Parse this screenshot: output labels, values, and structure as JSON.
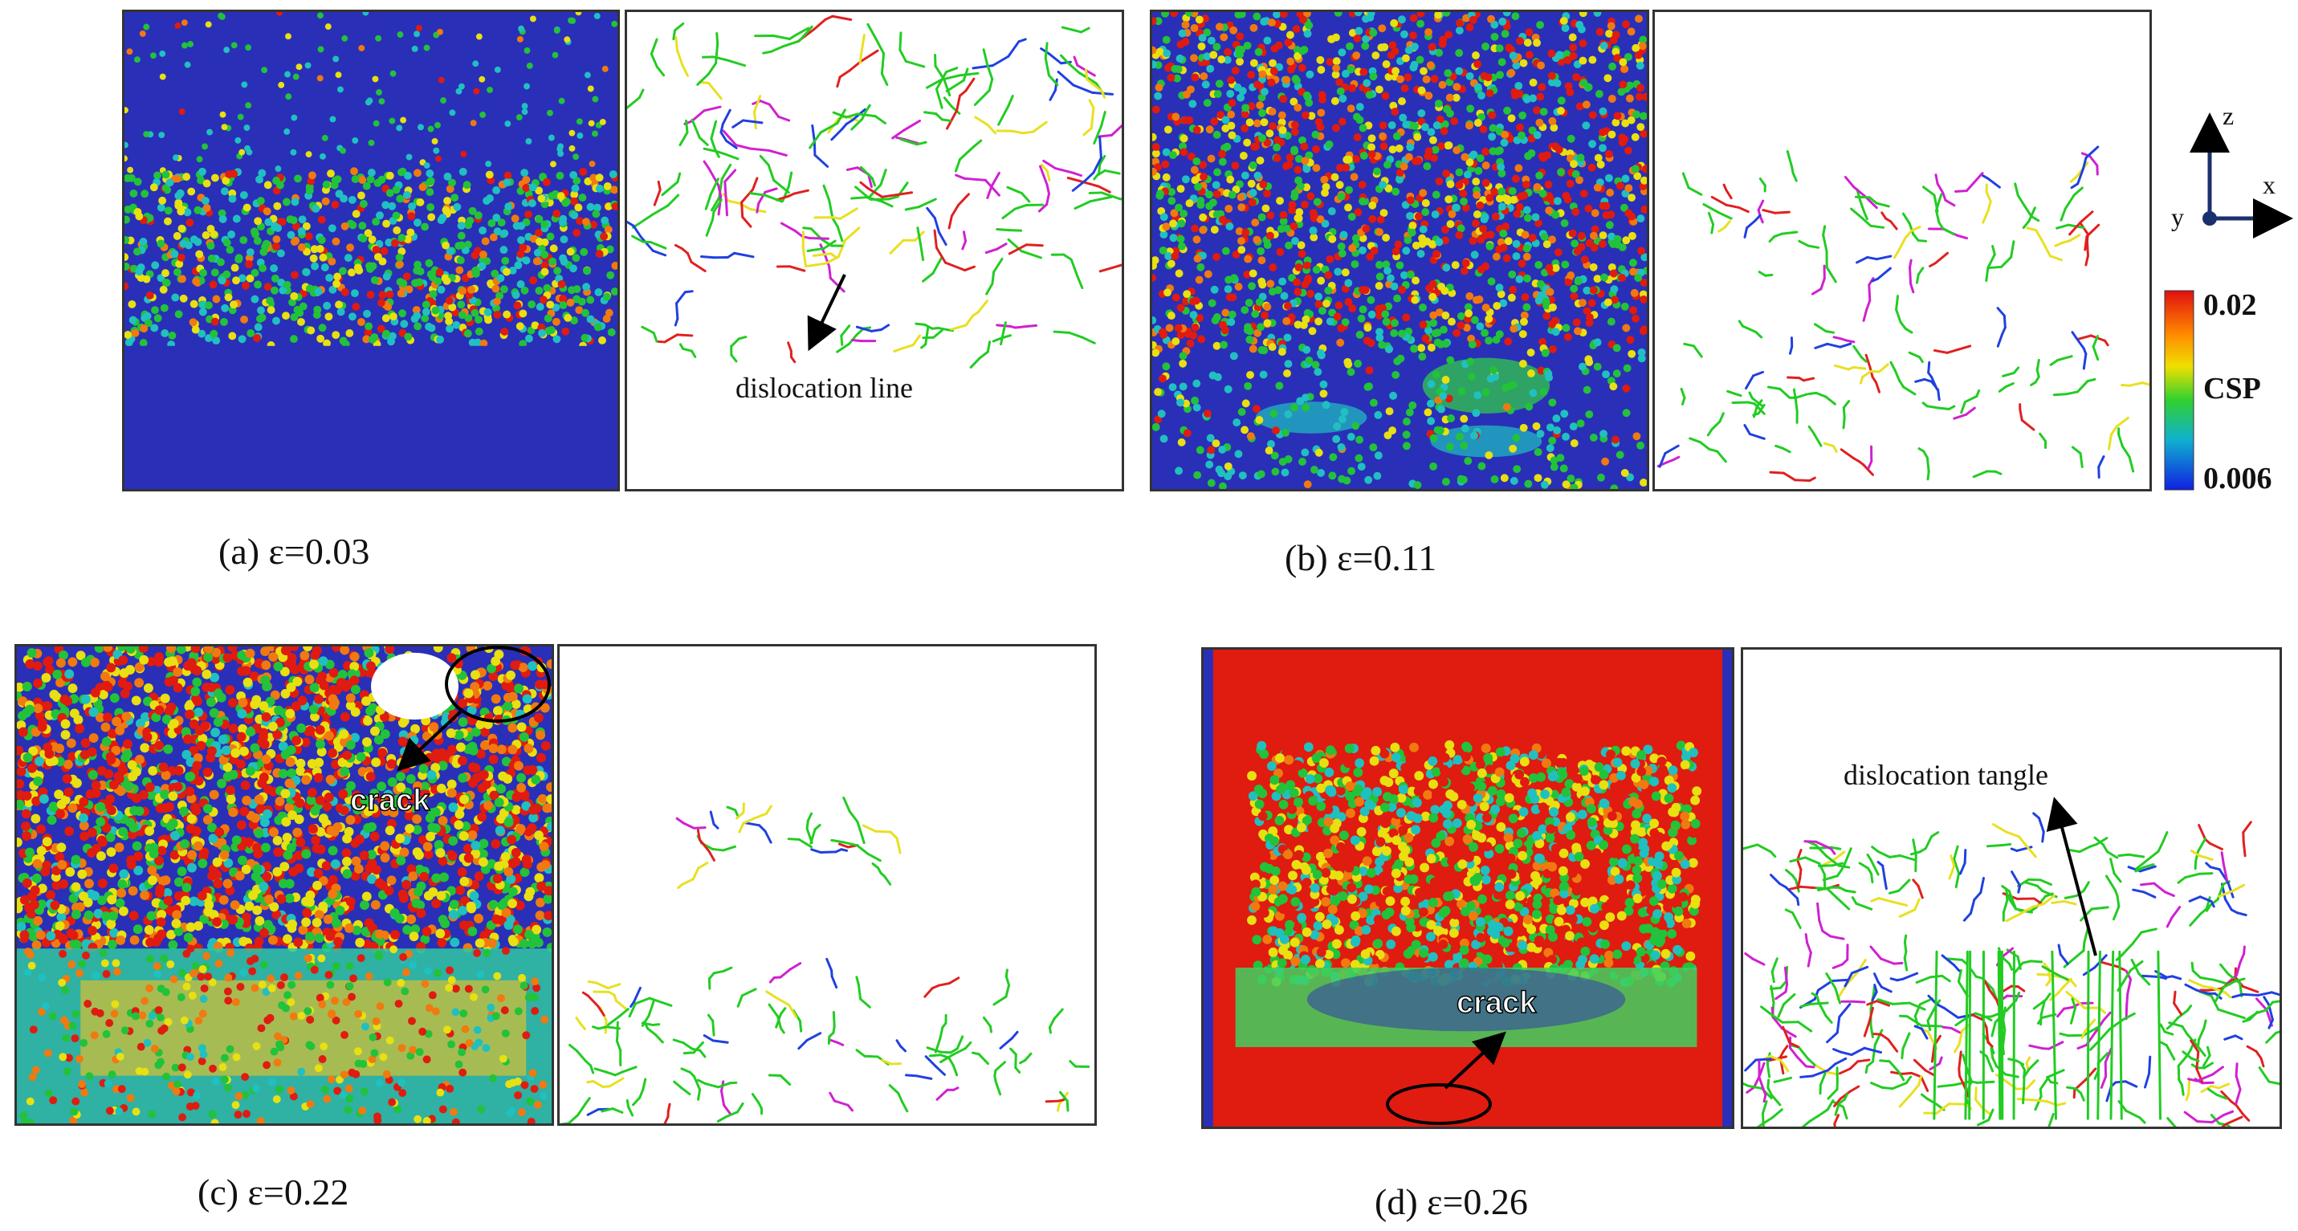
{
  "panels": [
    {
      "caption": "(a) ε=0.03",
      "annotation": "dislocation line"
    },
    {
      "caption": "(b) ε=0.11"
    },
    {
      "caption": "(c) ε=0.22",
      "annotation": "crack"
    },
    {
      "caption": "(d) ε=0.26",
      "annotation_crack": "crack",
      "annotation_tangle": "dislocation tangle"
    }
  ],
  "colorbar": {
    "max": "0.02",
    "label": "CSP",
    "min": "0.006"
  },
  "axes": {
    "z": "z",
    "x": "x",
    "y": "y"
  },
  "colors": {
    "csp_low": "#2a2fb8",
    "csp_mid": "#22c23a",
    "csp_high": "#e01b10",
    "disl_green": "#22cc22"
  }
}
